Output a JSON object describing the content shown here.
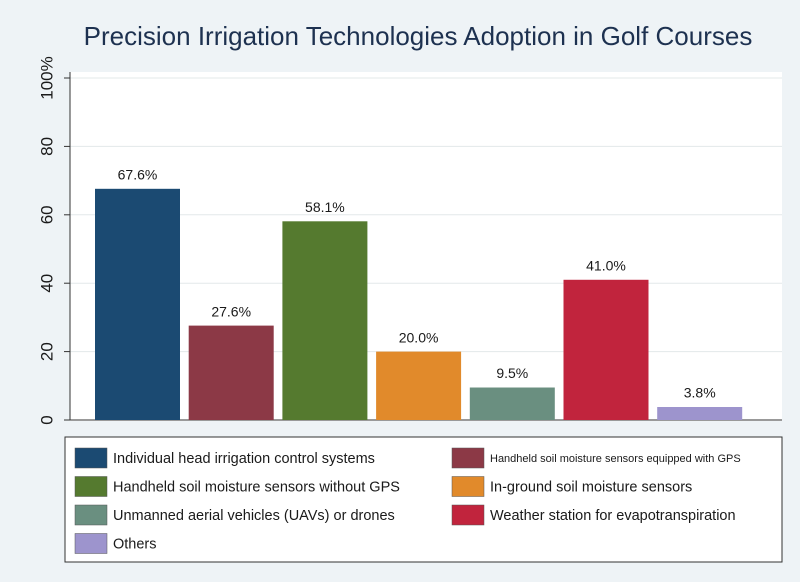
{
  "chart_data": {
    "type": "bar",
    "title": "Precision Irrigation Technologies Adoption in Golf Courses",
    "categories": [
      "Individual head irrigation control systems",
      "Handheld soil moisture sensors equipped with GPS",
      "Handheld soil moisture sensors without GPS",
      "In-ground soil moisture sensors",
      "Unmanned aerial vehicles (UAVs) or drones",
      "Weather station for evapotranspiration",
      "Others"
    ],
    "values": [
      67.6,
      27.6,
      58.1,
      20.0,
      9.5,
      41.0,
      3.8
    ],
    "value_labels": [
      "67.6%",
      "27.6%",
      "58.1%",
      "20.0%",
      "9.5%",
      "41.0%",
      "3.8%"
    ],
    "colors": [
      "#1b4a72",
      "#8c3946",
      "#557a2f",
      "#e18a2b",
      "#6a8f80",
      "#c1243d",
      "#9d94cd"
    ],
    "ylim": [
      0,
      100
    ],
    "yticks": [
      0,
      20,
      40,
      60,
      80,
      {
        "value": 100,
        "label": "100%"
      }
    ],
    "grid": true
  }
}
